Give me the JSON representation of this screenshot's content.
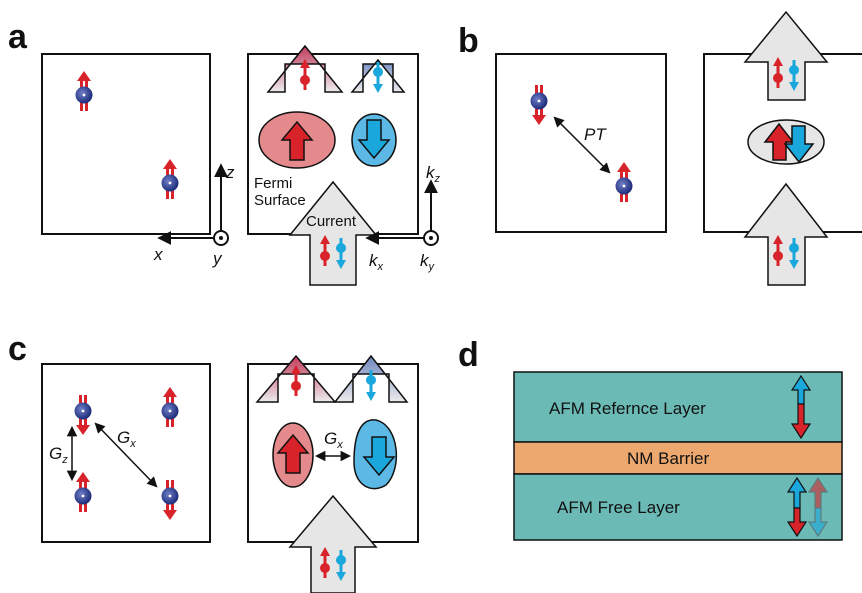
{
  "panels": {
    "a": {
      "label": "a",
      "fermi_surface_line1": "Fermi",
      "fermi_surface_line2": "Surface",
      "current": "Current",
      "axes_real": {
        "z": "z",
        "x": "x",
        "y": "y"
      },
      "axes_k": {
        "kz_main": "k",
        "kz_sub": "z",
        "kx_main": "k",
        "kx_sub": "x",
        "ky_main": "k",
        "ky_sub": "y"
      }
    },
    "b": {
      "label": "b",
      "symmetry": "PT"
    },
    "c": {
      "label": "c",
      "gz_main": "G",
      "gz_sub": "z",
      "gx_main": "G",
      "gx_sub": "x",
      "gx_k_main": "G",
      "gx_k_sub": "x"
    },
    "d": {
      "label": "d",
      "layers": [
        "AFM Refernce Layer",
        "NM Barrier",
        "AFM Free Layer"
      ]
    }
  },
  "colors": {
    "spin_up": "#d8232a",
    "spin_down": "#1aa7dc",
    "atom": "#2a3f9d",
    "afm_layer": "#6bbab6",
    "barrier": "#eca86f",
    "arrow_gray": "#e6e6e6",
    "fermi_red": "#e58a8c",
    "fermi_blue": "#5cb9e6"
  },
  "icons": [
    "atom-spin-icon",
    "current-arrow-icon",
    "fermi-pocket-icon",
    "out-of-plane-axis-icon",
    "double-headed-arrow-icon"
  ]
}
